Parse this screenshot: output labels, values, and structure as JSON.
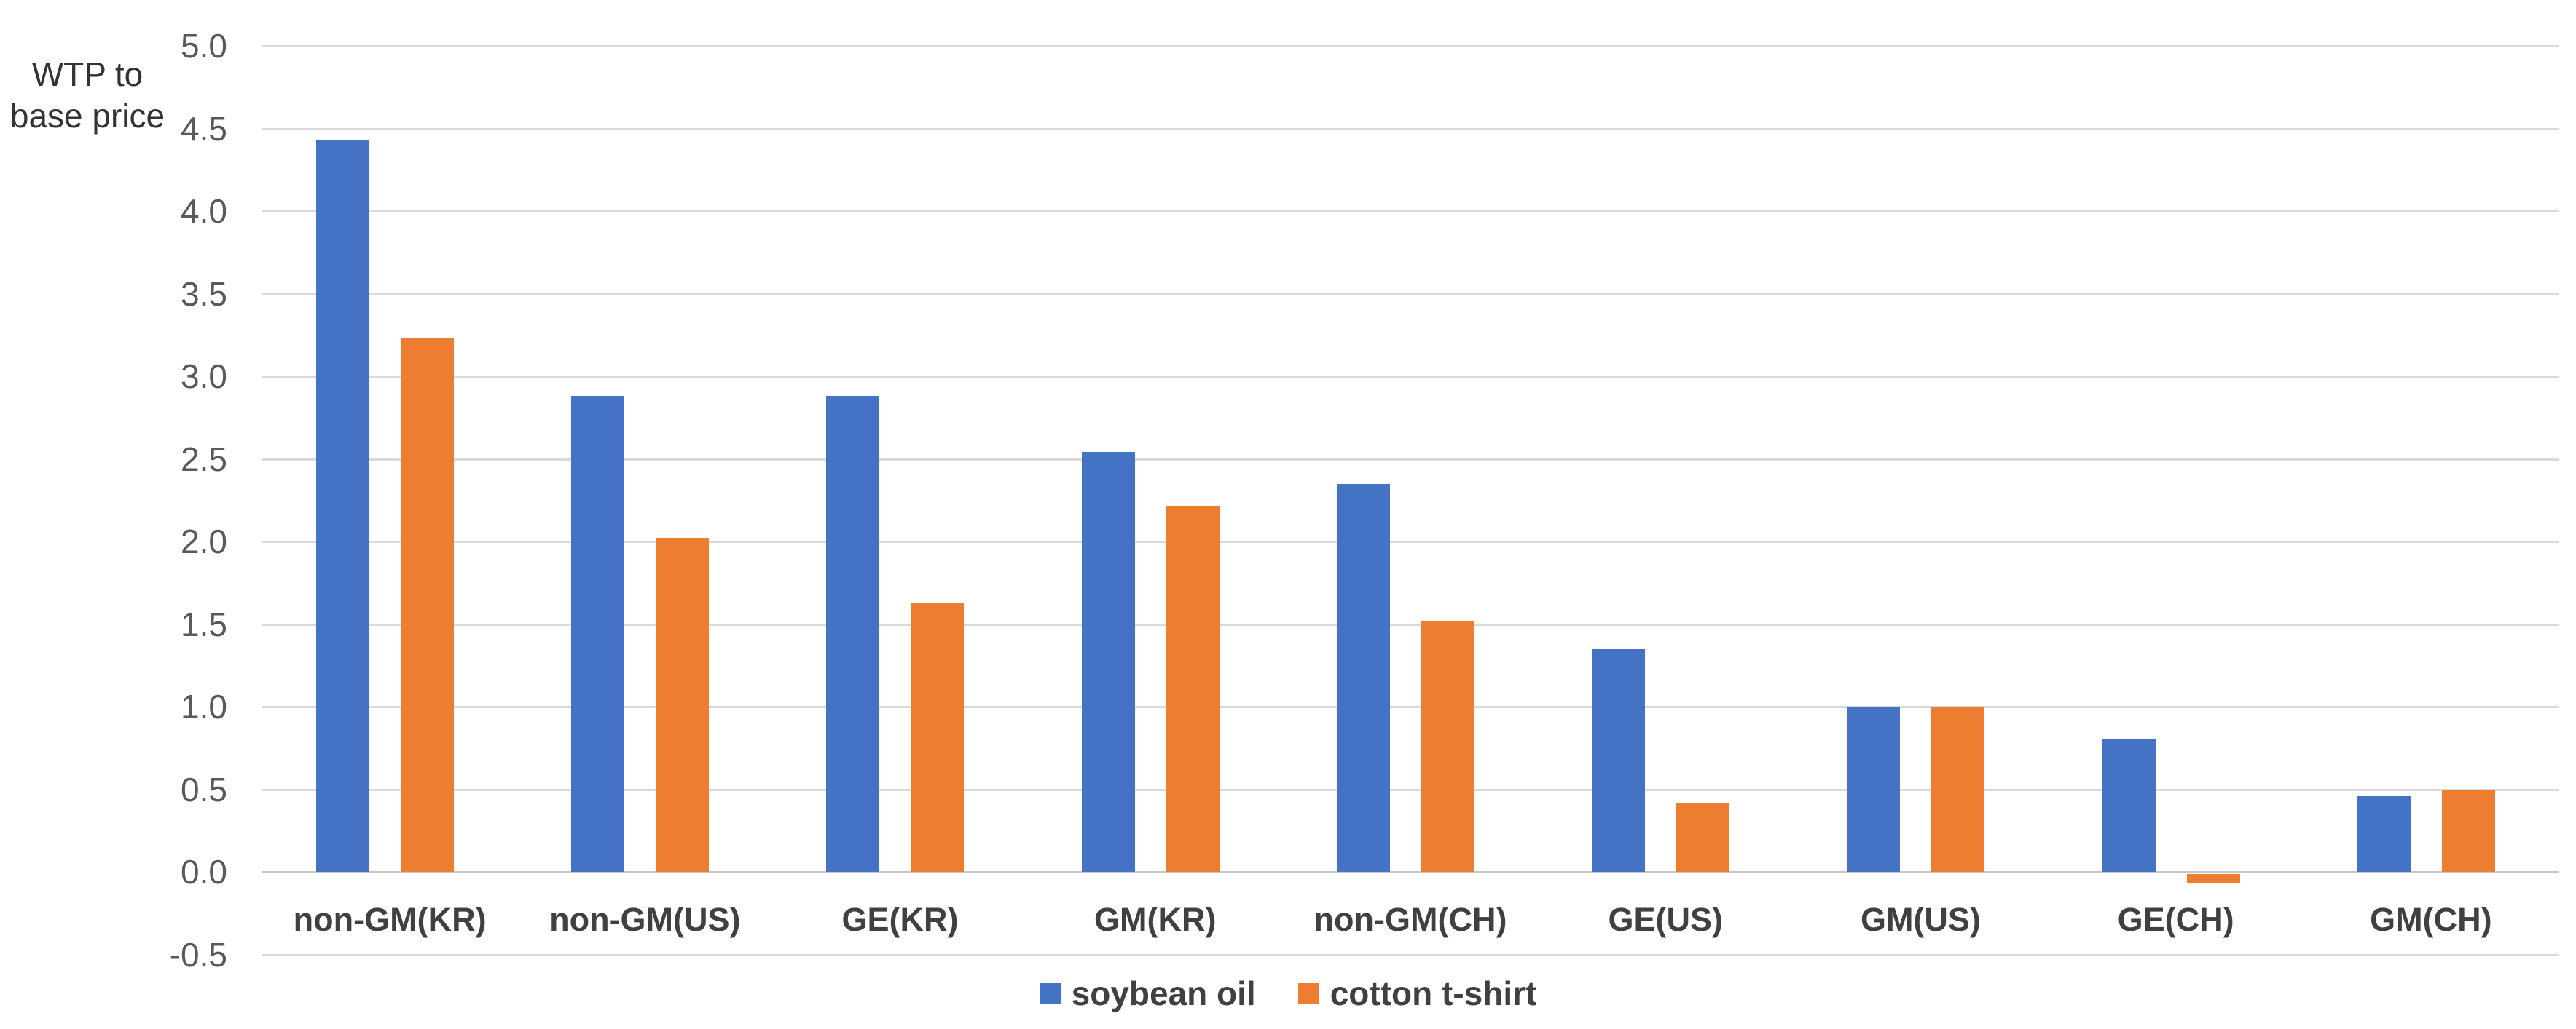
{
  "chart": {
    "y_axis_title_lines": [
      "WTP to",
      "base price"
    ]
  },
  "chart_data": {
    "type": "bar",
    "title": "",
    "ylabel": "WTP to base price",
    "xlabel": "",
    "categories": [
      "non-GM(KR)",
      "non-GM(US)",
      "GE(KR)",
      "GM(KR)",
      "non-GM(CH)",
      "GE(US)",
      "GM(US)",
      "GE(CH)",
      "GM(CH)"
    ],
    "series": [
      {
        "name": "soybean oil",
        "color": "#4472C4",
        "values": [
          4.43,
          2.88,
          2.88,
          2.54,
          2.35,
          1.35,
          1.0,
          0.8,
          0.46
        ]
      },
      {
        "name": "cotton t-shirt",
        "color": "#ED7D31",
        "values": [
          3.23,
          2.02,
          1.63,
          2.21,
          1.52,
          0.42,
          1.0,
          -0.07,
          0.5
        ]
      }
    ],
    "ylim": [
      -0.5,
      5.0
    ],
    "ytick_step": 0.5,
    "ytick_format_decimals": 1,
    "grid": true,
    "legend_position": "bottom",
    "colors": {
      "gridline": "#D9D9D9",
      "zero_line": "#C6C6C6",
      "tick_text": "#595959",
      "category_text": "#404040",
      "axis_title_text": "#333333"
    }
  }
}
